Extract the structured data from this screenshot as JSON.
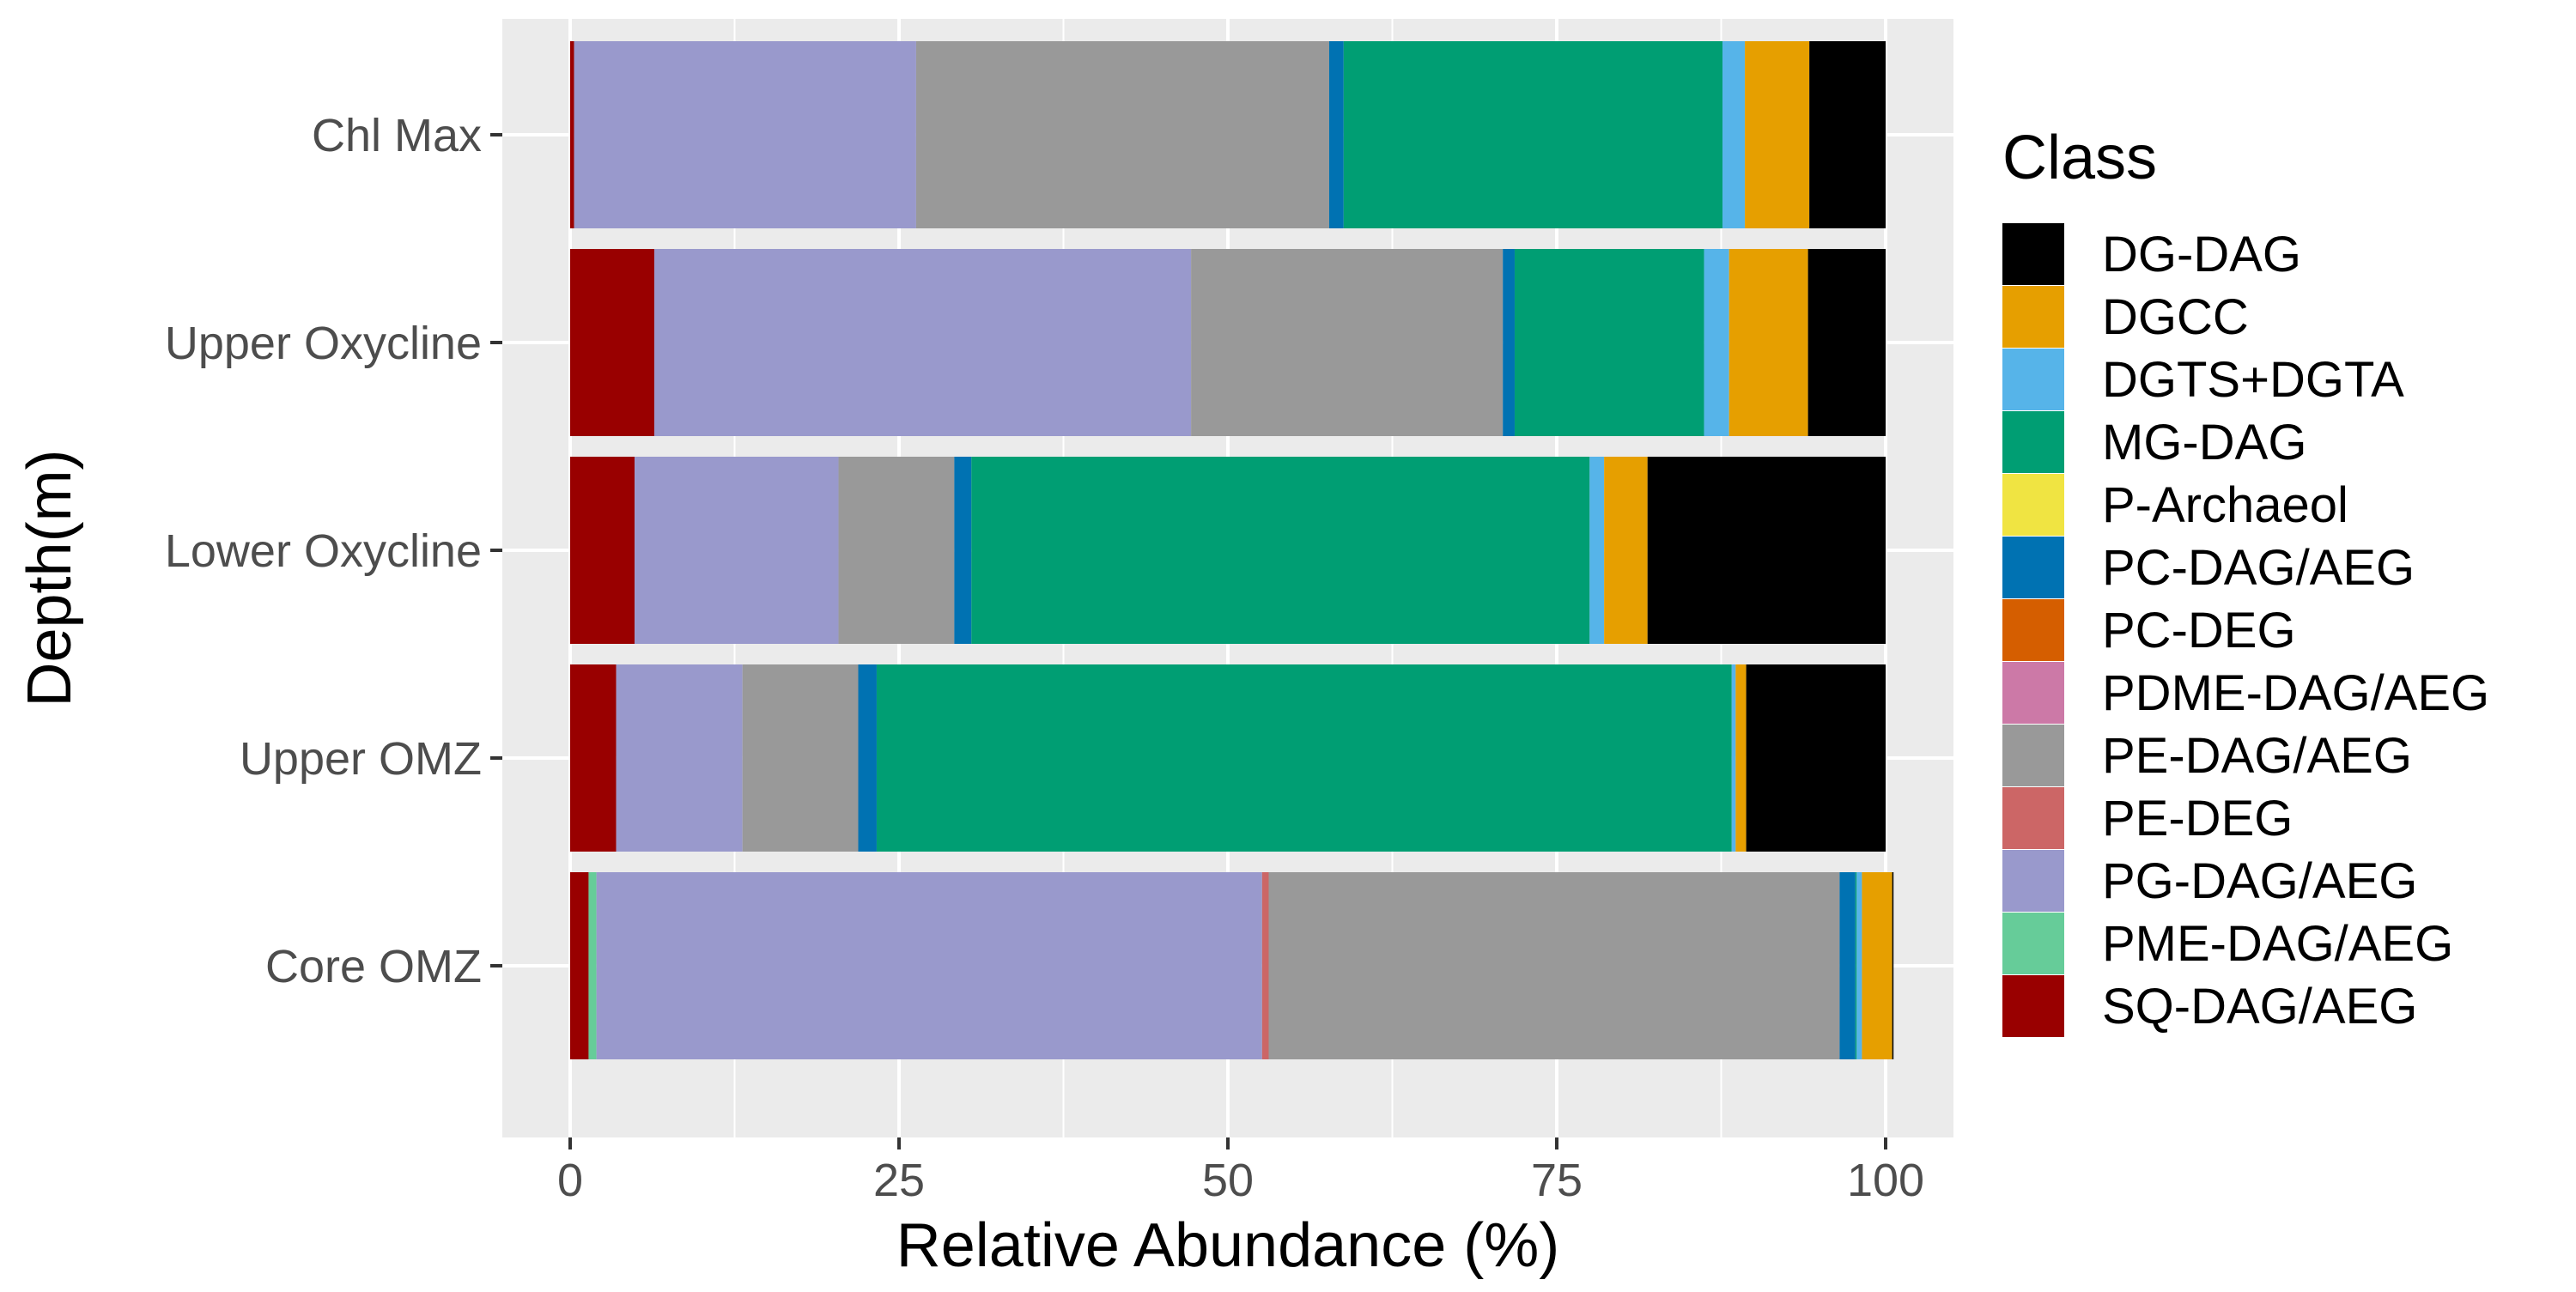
{
  "chart_data": {
    "type": "bar",
    "orientation": "horizontal",
    "stacked": true,
    "title": "",
    "xlabel": "Relative Abundance (%)",
    "ylabel": "Depth(m)",
    "xlim": [
      0,
      100
    ],
    "x_ticks": [
      "0",
      "25",
      "50",
      "75",
      "100"
    ],
    "grid": true,
    "legend": {
      "title": "Class",
      "position": "right"
    },
    "categories": [
      "Chl Max",
      "Upper Oxycline",
      "Lower Oxycline",
      "Upper OMZ",
      "Core OMZ"
    ],
    "series": [
      {
        "name": "SQ-DAG/AEG",
        "color": "#990000",
        "values": [
          0.3,
          6.4,
          4.9,
          3.5,
          1.4
        ]
      },
      {
        "name": "PME-DAG/AEG",
        "color": "#66CC99",
        "values": [
          0,
          0,
          0,
          0,
          0.6
        ]
      },
      {
        "name": "PG-DAG/AEG",
        "color": "#9999CC",
        "values": [
          26.0,
          40.8,
          15.5,
          9.6,
          50.6
        ]
      },
      {
        "name": "PE-DEG",
        "color": "#CC6666",
        "values": [
          0,
          0,
          0,
          0,
          0.5
        ]
      },
      {
        "name": "PE-DAG/AEG",
        "color": "#999999",
        "values": [
          31.4,
          23.7,
          8.8,
          8.8,
          43.4
        ]
      },
      {
        "name": "PDME-DAG/AEG",
        "color": "#CC79A7",
        "values": [
          0,
          0,
          0,
          0,
          0
        ]
      },
      {
        "name": "PC-DEG",
        "color": "#D55E00",
        "values": [
          0,
          0,
          0,
          0,
          0
        ]
      },
      {
        "name": "PC-DAG/AEG",
        "color": "#0072B2",
        "values": [
          1.1,
          0.9,
          1.3,
          1.4,
          1.2
        ]
      },
      {
        "name": "P-Archaeol",
        "color": "#F0E442",
        "values": [
          0,
          0,
          0,
          0,
          0
        ]
      },
      {
        "name": "MG-DAG",
        "color": "#009E73",
        "values": [
          28.8,
          14.4,
          47.0,
          65.0,
          0.1
        ]
      },
      {
        "name": "DGTS+DGTA",
        "color": "#56B4E9",
        "values": [
          1.7,
          1.9,
          1.1,
          0.3,
          0.4
        ]
      },
      {
        "name": "DGCC",
        "color": "#E69F00",
        "values": [
          4.9,
          6.0,
          3.3,
          0.8,
          2.3
        ]
      },
      {
        "name": "DG-DAG",
        "color": "#000000",
        "values": [
          5.8,
          5.9,
          18.1,
          10.6,
          0.1
        ]
      }
    ],
    "legend_order": [
      "DG-DAG",
      "DGCC",
      "DGTS+DGTA",
      "MG-DAG",
      "P-Archaeol",
      "PC-DAG/AEG",
      "PC-DEG",
      "PDME-DAG/AEG",
      "PE-DAG/AEG",
      "PE-DEG",
      "PG-DAG/AEG",
      "PME-DAG/AEG",
      "SQ-DAG/AEG"
    ]
  }
}
